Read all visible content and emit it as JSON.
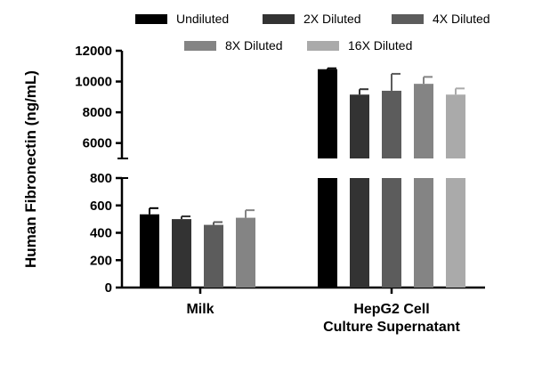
{
  "chart_data": {
    "type": "bar",
    "ylabel": "Human Fibronectin (ng/mL)",
    "categories": [
      "Milk",
      "HepG2 Cell\nCulture Supernatant"
    ],
    "y_axis_broken": true,
    "y_segments": [
      {
        "range": [
          0,
          800
        ],
        "ticks": [
          0,
          200,
          400,
          600,
          800
        ]
      },
      {
        "range": [
          5000,
          12000
        ],
        "ticks": [
          6000,
          8000,
          10000,
          12000
        ]
      }
    ],
    "legend_placement": "top",
    "series": [
      {
        "name": "Undiluted",
        "color": "#000000",
        "values": [
          535,
          10800
        ],
        "errors": [
          45,
          60
        ]
      },
      {
        "name": "2X Diluted",
        "color": "#333333",
        "values": [
          500,
          9150
        ],
        "errors": [
          20,
          350
        ]
      },
      {
        "name": "4X Diluted",
        "color": "#5c5c5c",
        "values": [
          458,
          9400
        ],
        "errors": [
          20,
          1100
        ]
      },
      {
        "name": "8X Diluted",
        "color": "#848484",
        "values": [
          510,
          9850
        ],
        "errors": [
          55,
          450
        ]
      },
      {
        "name": "16X Diluted",
        "color": "#aaaaaa",
        "values": [
          null,
          9150
        ],
        "errors": [
          null,
          400
        ]
      }
    ]
  }
}
